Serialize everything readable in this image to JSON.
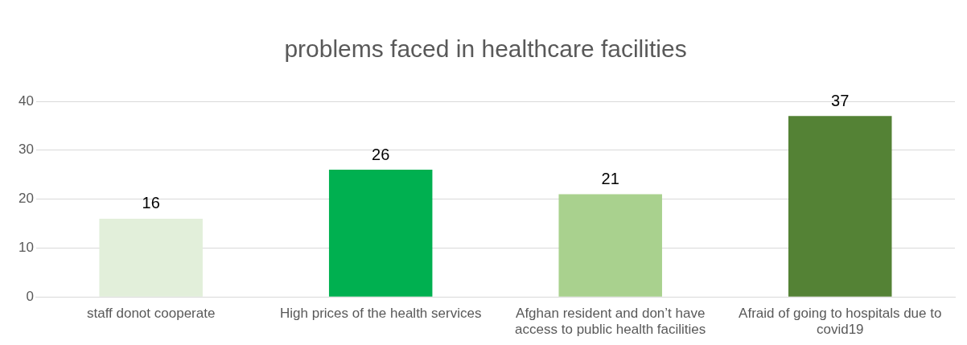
{
  "chart_data": {
    "type": "bar",
    "title": "problems faced in healthcare facilities",
    "categories": [
      "staff donot cooperate",
      "High prices of the health services",
      "Afghan resident and don’t have access to public health facilities",
      "Afraid of going to hospitals due to covid19"
    ],
    "values": [
      16,
      26,
      21,
      37
    ],
    "colors": [
      "#e2efda",
      "#00b050",
      "#a9d18e",
      "#548235"
    ],
    "ylim": [
      0,
      40
    ],
    "yticks": [
      0,
      10,
      20,
      30,
      40
    ],
    "grid": "y",
    "data_labels": true,
    "legend": false
  }
}
